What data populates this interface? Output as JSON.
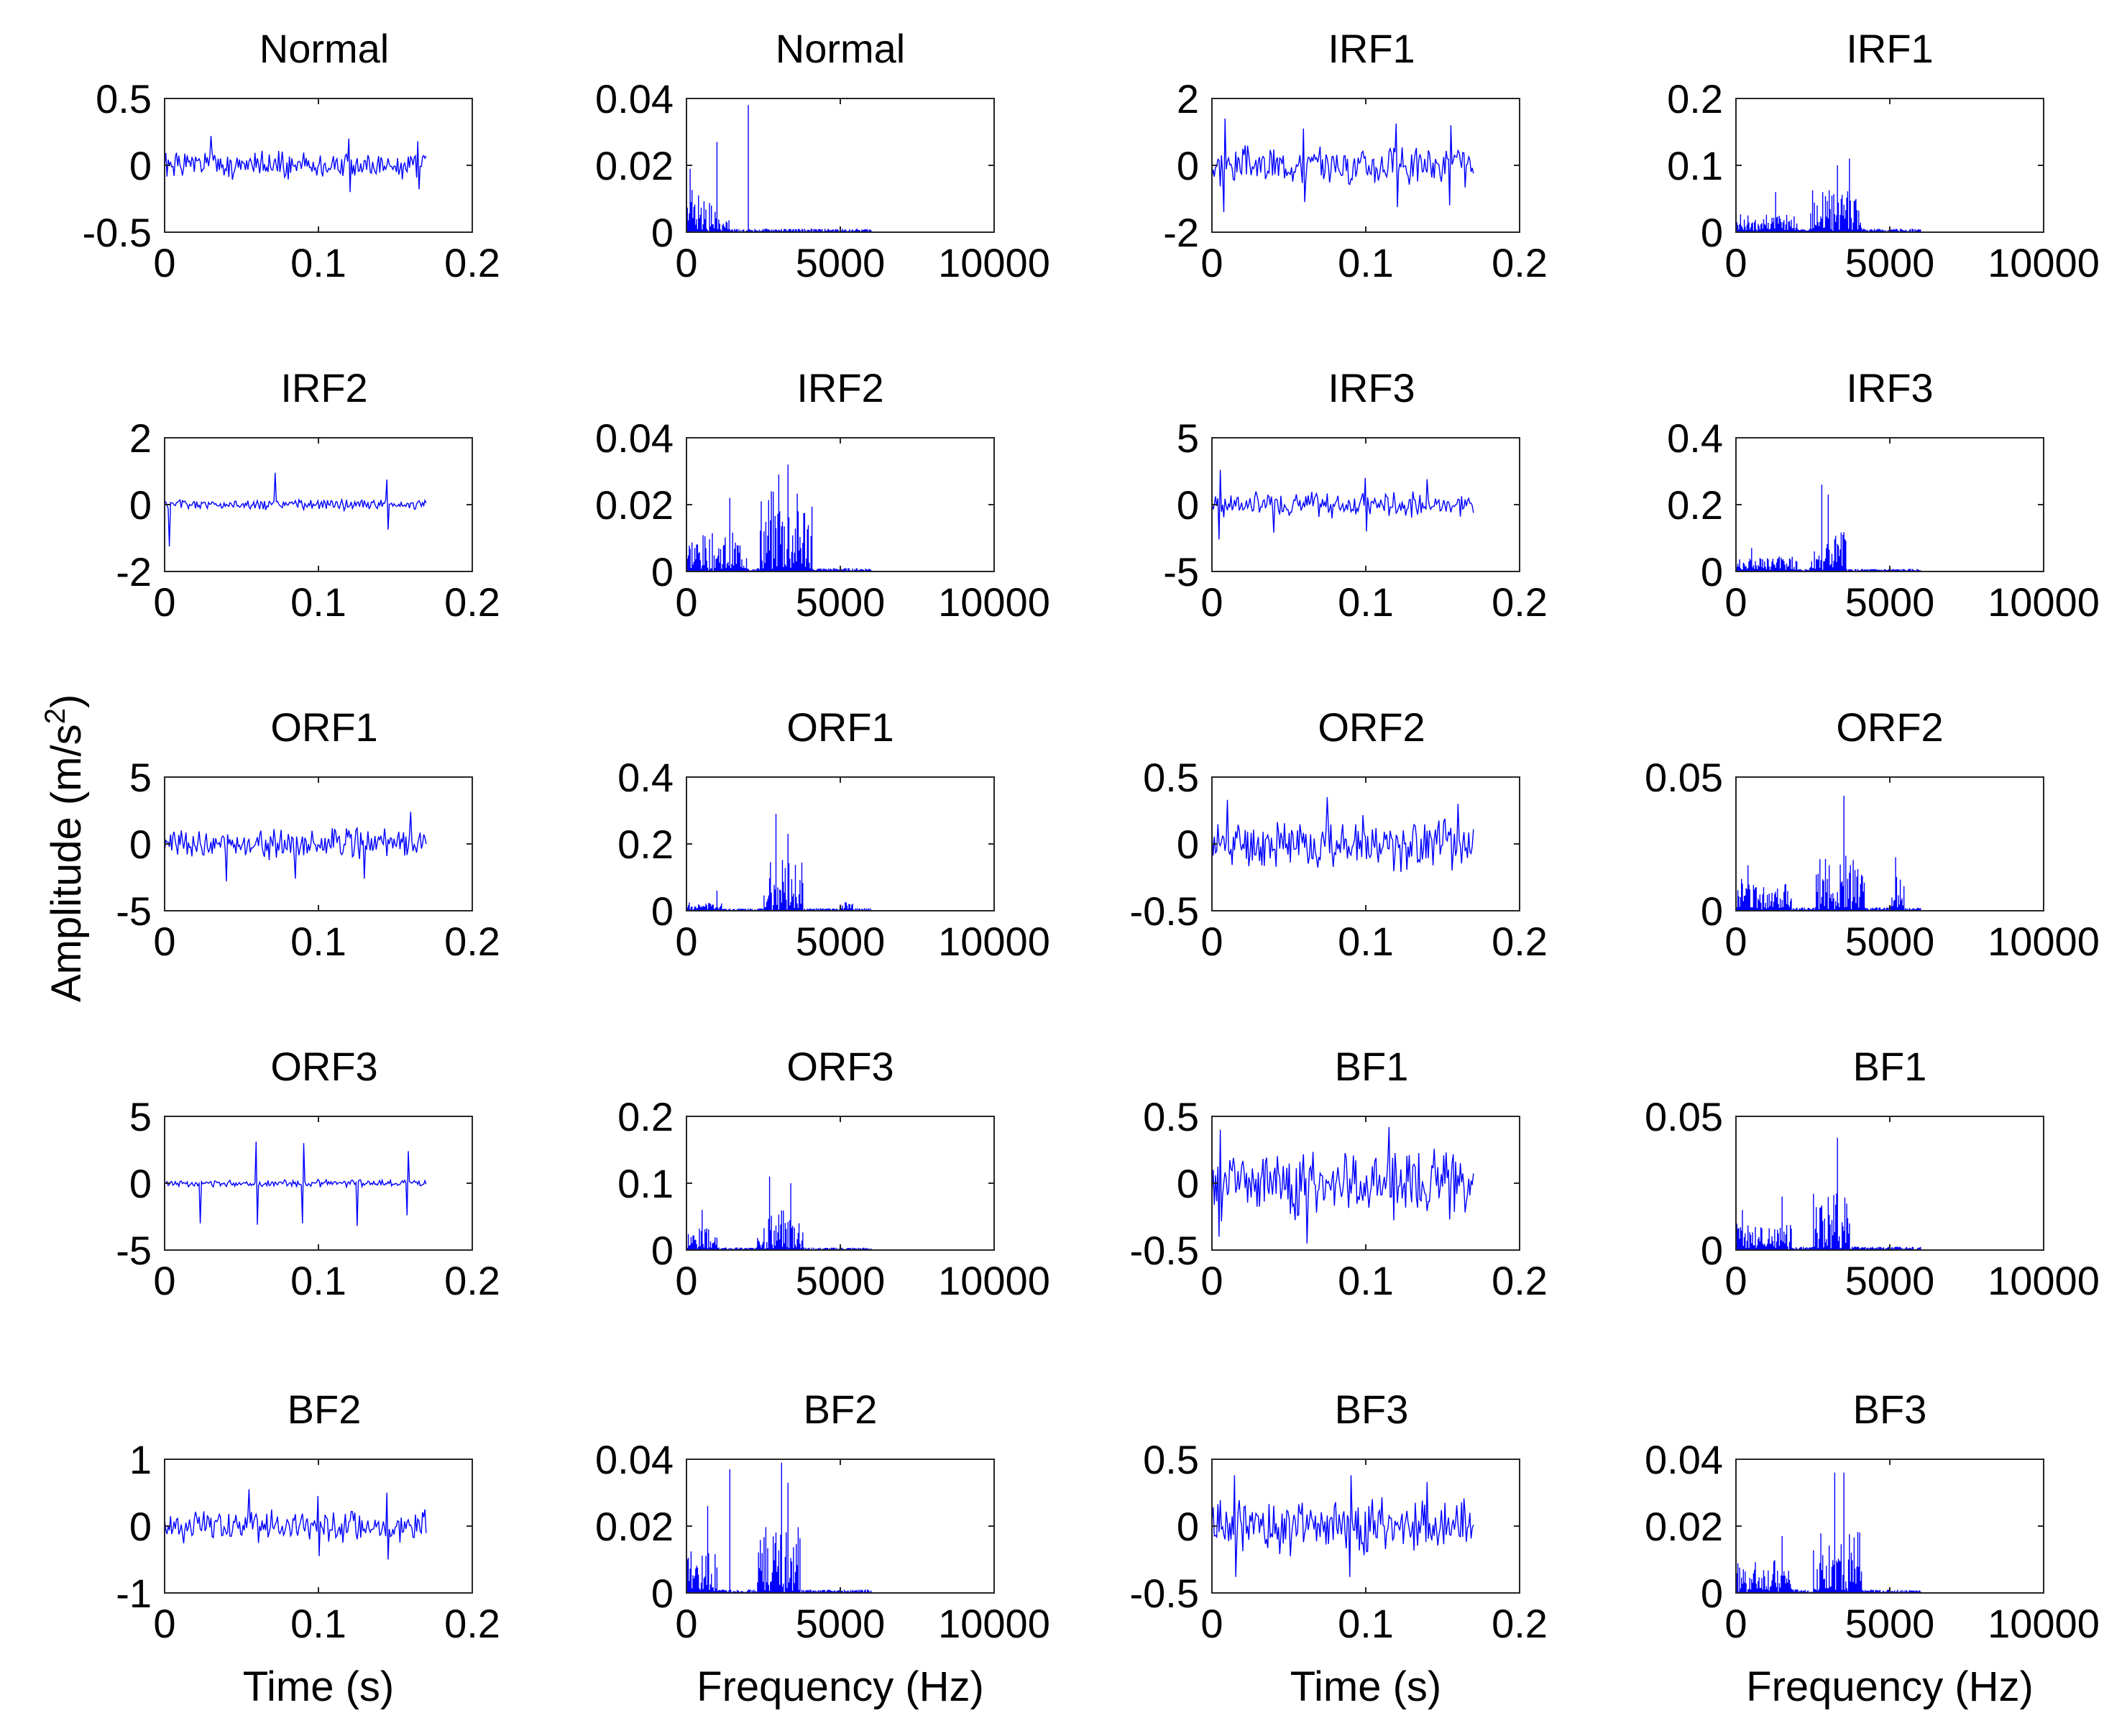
{
  "figure": {
    "ylabel": "Amplitude (m/s",
    "ylabel_sup": "2",
    "ylabel_close": ")",
    "xlabel_time": "Time (s)",
    "xlabel_freq": "Frequency (Hz)"
  },
  "chart_data": [
    {
      "type": "line",
      "domain": "time",
      "title": "Normal",
      "xlim": [
        0,
        0.2
      ],
      "ylim": [
        -0.5,
        0.5
      ],
      "xticks": [
        "0",
        "0.1",
        "0.2"
      ],
      "yticks": [
        "0.5",
        "0",
        "-0.5"
      ],
      "x_end": 0.17,
      "amp": 0.12,
      "spikes": [
        [
          0.03,
          0.22
        ],
        [
          0.12,
          0.2
        ],
        [
          0.165,
          0.18
        ]
      ],
      "seed": 1
    },
    {
      "type": "line",
      "domain": "frequency",
      "title": "Normal",
      "xlim": [
        0,
        10000
      ],
      "ylim": [
        0,
        0.04
      ],
      "xticks": [
        "0",
        "5000",
        "10000"
      ],
      "yticks": [
        "0.04",
        "0.02",
        "0"
      ],
      "x_end": 6000,
      "base": 0.0008,
      "bands": [
        [
          0,
          900,
          0.012
        ],
        [
          900,
          1400,
          0.006
        ]
      ],
      "spikes": [
        [
          120,
          0.019
        ],
        [
          1000,
          0.027
        ],
        [
          1800,
          0.0
        ],
        [
          2000,
          0.038
        ],
        [
          400,
          0.011
        ]
      ],
      "seed": 2
    },
    {
      "type": "line",
      "domain": "time",
      "title": "IRF1",
      "xlim": [
        0,
        0.2
      ],
      "ylim": [
        -2,
        2
      ],
      "xticks": [
        "0",
        "0.1",
        "0.2"
      ],
      "yticks": [
        "2",
        "0",
        "-2"
      ],
      "x_end": 0.17,
      "amp": 0.7,
      "spikes": [
        [
          0.008,
          1.4
        ],
        [
          0.06,
          1.1
        ],
        [
          0.12,
          1.25
        ],
        [
          0.155,
          1.2
        ]
      ],
      "seed": 3
    },
    {
      "type": "line",
      "domain": "frequency",
      "title": "IRF1",
      "xlim": [
        0,
        10000
      ],
      "ylim": [
        0,
        0.2
      ],
      "xticks": [
        "0",
        "5000",
        "10000"
      ],
      "yticks": [
        "0.2",
        "0.1",
        "0"
      ],
      "x_end": 6000,
      "base": 0.004,
      "bands": [
        [
          0,
          2000,
          0.025
        ],
        [
          2400,
          4100,
          0.06
        ]
      ],
      "spikes": [
        [
          1300,
          0.06
        ],
        [
          3300,
          0.1
        ],
        [
          3700,
          0.11
        ]
      ],
      "seed": 4
    },
    {
      "type": "line",
      "domain": "time",
      "title": "IRF2",
      "xlim": [
        0,
        0.2
      ],
      "ylim": [
        -2,
        2
      ],
      "xticks": [
        "0",
        "0.1",
        "0.2"
      ],
      "yticks": [
        "2",
        "0",
        "-2"
      ],
      "x_end": 0.17,
      "amp": 0.18,
      "spikes": [
        [
          0.003,
          1.25
        ],
        [
          0.072,
          0.95
        ],
        [
          0.145,
          0.75
        ]
      ],
      "seed": 5
    },
    {
      "type": "line",
      "domain": "frequency",
      "title": "IRF2",
      "xlim": [
        0,
        10000
      ],
      "ylim": [
        0,
        0.04
      ],
      "xticks": [
        "0",
        "5000",
        "10000"
      ],
      "yticks": [
        "0.04",
        "0.02",
        "0"
      ],
      "x_end": 6000,
      "base": 0.0008,
      "bands": [
        [
          0,
          2000,
          0.011
        ],
        [
          2400,
          4100,
          0.024
        ]
      ],
      "spikes": [
        [
          1400,
          0.022
        ],
        [
          3300,
          0.032
        ],
        [
          3000,
          0.029
        ]
      ],
      "seed": 6
    },
    {
      "type": "line",
      "domain": "time",
      "title": "IRF3",
      "xlim": [
        0,
        0.2
      ],
      "ylim": [
        -5,
        5
      ],
      "xticks": [
        "0",
        "0.1",
        "0.2"
      ],
      "yticks": [
        "5",
        "0",
        "-5"
      ],
      "x_end": 0.17,
      "amp": 1.1,
      "spikes": [
        [
          0.005,
          2.6
        ],
        [
          0.04,
          2.1
        ],
        [
          0.1,
          2.0
        ],
        [
          0.14,
          1.9
        ]
      ],
      "seed": 7
    },
    {
      "type": "line",
      "domain": "frequency",
      "title": "IRF3",
      "xlim": [
        0,
        10000
      ],
      "ylim": [
        0,
        0.4
      ],
      "xticks": [
        "0",
        "5000",
        "10000"
      ],
      "yticks": [
        "0.4",
        "0.2",
        "0"
      ],
      "x_end": 6000,
      "base": 0.006,
      "bands": [
        [
          0,
          2000,
          0.04
        ],
        [
          2400,
          3600,
          0.12
        ]
      ],
      "spikes": [
        [
          2800,
          0.26
        ],
        [
          3000,
          0.23
        ],
        [
          500,
          0.07
        ]
      ],
      "seed": 8
    },
    {
      "type": "line",
      "domain": "time",
      "title": "ORF1",
      "xlim": [
        0,
        0.2
      ],
      "ylim": [
        -5,
        5
      ],
      "xticks": [
        "0",
        "0.1",
        "0.2"
      ],
      "yticks": [
        "5",
        "0",
        "-5"
      ],
      "x_end": 0.17,
      "amp": 1.3,
      "spikes": [
        [
          0.04,
          2.8
        ],
        [
          0.085,
          2.6
        ],
        [
          0.13,
          2.6
        ],
        [
          0.16,
          2.4
        ]
      ],
      "seed": 9
    },
    {
      "type": "line",
      "domain": "frequency",
      "title": "ORF1",
      "xlim": [
        0,
        10000
      ],
      "ylim": [
        0,
        0.4
      ],
      "xticks": [
        "0",
        "5000",
        "10000"
      ],
      "yticks": [
        "0.4",
        "0.2",
        "0"
      ],
      "x_end": 6000,
      "base": 0.006,
      "bands": [
        [
          0,
          1200,
          0.02
        ],
        [
          2500,
          3800,
          0.15
        ],
        [
          5000,
          5400,
          0.02
        ]
      ],
      "spikes": [
        [
          2900,
          0.29
        ],
        [
          3300,
          0.23
        ],
        [
          1000,
          0.06
        ]
      ],
      "seed": 10
    },
    {
      "type": "line",
      "domain": "time",
      "title": "ORF2",
      "xlim": [
        0,
        0.2
      ],
      "ylim": [
        -0.5,
        0.5
      ],
      "xticks": [
        "0",
        "0.1",
        "0.2"
      ],
      "yticks": [
        "0.5",
        "0",
        "-0.5"
      ],
      "x_end": 0.17,
      "amp": 0.22,
      "spikes": [
        [
          0.01,
          0.33
        ],
        [
          0.075,
          0.35
        ],
        [
          0.16,
          0.3
        ]
      ],
      "seed": 11
    },
    {
      "type": "line",
      "domain": "frequency",
      "title": "ORF2",
      "xlim": [
        0,
        10000
      ],
      "ylim": [
        0,
        0.05
      ],
      "xticks": [
        "0",
        "5000",
        "10000"
      ],
      "yticks": [
        "0.05",
        "0"
      ],
      "x_end": 6000,
      "base": 0.001,
      "bands": [
        [
          0,
          1800,
          0.011
        ],
        [
          2600,
          4200,
          0.02
        ],
        [
          5000,
          5500,
          0.012
        ]
      ],
      "spikes": [
        [
          3500,
          0.043
        ],
        [
          5200,
          0.02
        ],
        [
          400,
          0.017
        ]
      ],
      "seed": 12
    },
    {
      "type": "line",
      "domain": "time",
      "title": "ORF3",
      "xlim": [
        0,
        0.2
      ],
      "ylim": [
        -5,
        5
      ],
      "xticks": [
        "0",
        "0.1",
        "0.2"
      ],
      "yticks": [
        "5",
        "0",
        "-5"
      ],
      "x_end": 0.17,
      "amp": 0.3,
      "spikes": [
        [
          0.023,
          3.0
        ],
        [
          0.06,
          3.1
        ],
        [
          0.09,
          3.0
        ],
        [
          0.125,
          3.2
        ],
        [
          0.158,
          2.4
        ]
      ],
      "seed": 13
    },
    {
      "type": "line",
      "domain": "frequency",
      "title": "ORF3",
      "xlim": [
        0,
        10000
      ],
      "ylim": [
        0,
        0.2
      ],
      "xticks": [
        "0",
        "5000",
        "10000"
      ],
      "yticks": [
        "0.2",
        "0.1",
        "0"
      ],
      "x_end": 6000,
      "base": 0.003,
      "bands": [
        [
          0,
          1000,
          0.03
        ],
        [
          2300,
          3800,
          0.06
        ]
      ],
      "spikes": [
        [
          2700,
          0.11
        ],
        [
          3400,
          0.1
        ],
        [
          500,
          0.06
        ]
      ],
      "seed": 14
    },
    {
      "type": "line",
      "domain": "time",
      "title": "BF1",
      "xlim": [
        0,
        0.2
      ],
      "ylim": [
        -0.5,
        0.5
      ],
      "xticks": [
        "0",
        "0.1",
        "0.2"
      ],
      "yticks": [
        "0.5",
        "0",
        "-0.5"
      ],
      "x_end": 0.17,
      "amp": 0.3,
      "spikes": [
        [
          0.062,
          0.45
        ],
        [
          0.115,
          0.42
        ],
        [
          0.005,
          0.4
        ]
      ],
      "seed": 15
    },
    {
      "type": "line",
      "domain": "frequency",
      "title": "BF1",
      "xlim": [
        0,
        10000
      ],
      "ylim": [
        0,
        0.05
      ],
      "xticks": [
        "0",
        "5000",
        "10000"
      ],
      "yticks": [
        "0.05",
        "0"
      ],
      "x_end": 6000,
      "base": 0.001,
      "bands": [
        [
          0,
          1800,
          0.01
        ],
        [
          2500,
          3700,
          0.022
        ]
      ],
      "spikes": [
        [
          3300,
          0.042
        ],
        [
          1500,
          0.02
        ],
        [
          200,
          0.015
        ]
      ],
      "seed": 16
    },
    {
      "type": "line",
      "domain": "time",
      "title": "BF2",
      "xlim": [
        0,
        0.2
      ],
      "ylim": [
        -1,
        1
      ],
      "xticks": [
        "0",
        "0.1",
        "0.2"
      ],
      "yticks": [
        "1",
        "0",
        "-1"
      ],
      "x_end": 0.17,
      "amp": 0.28,
      "spikes": [
        [
          0.055,
          0.55
        ],
        [
          0.1,
          0.45
        ],
        [
          0.145,
          0.5
        ]
      ],
      "seed": 17
    },
    {
      "type": "line",
      "domain": "frequency",
      "title": "BF2",
      "xlim": [
        0,
        10000
      ],
      "ylim": [
        0,
        0.04
      ],
      "xticks": [
        "0",
        "5000",
        "10000"
      ],
      "yticks": [
        "0.04",
        "0.02",
        "0"
      ],
      "x_end": 6000,
      "base": 0.0008,
      "bands": [
        [
          0,
          1000,
          0.012
        ],
        [
          2300,
          3700,
          0.02
        ]
      ],
      "spikes": [
        [
          700,
          0.026
        ],
        [
          1400,
          0.037
        ],
        [
          3100,
          0.039
        ],
        [
          3300,
          0.033
        ]
      ],
      "seed": 18
    },
    {
      "type": "line",
      "domain": "time",
      "title": "BF3",
      "xlim": [
        0,
        0.2
      ],
      "ylim": [
        -0.5,
        0.5
      ],
      "xticks": [
        "0",
        "0.1",
        "0.2"
      ],
      "yticks": [
        "0.5",
        "0",
        "-0.5"
      ],
      "x_end": 0.17,
      "amp": 0.25,
      "spikes": [
        [
          0.015,
          0.38
        ],
        [
          0.09,
          0.38
        ],
        [
          0.14,
          0.33
        ]
      ],
      "seed": 19
    },
    {
      "type": "line",
      "domain": "frequency",
      "title": "BF3",
      "xlim": [
        0,
        10000
      ],
      "ylim": [
        0,
        0.04
      ],
      "xticks": [
        "0",
        "5000",
        "10000"
      ],
      "yticks": [
        "0.04",
        "0.02",
        "0"
      ],
      "x_end": 6000,
      "base": 0.0008,
      "bands": [
        [
          0,
          1800,
          0.009
        ],
        [
          2500,
          4100,
          0.018
        ]
      ],
      "spikes": [
        [
          3200,
          0.036
        ],
        [
          3500,
          0.036
        ],
        [
          1500,
          0.017
        ]
      ],
      "seed": 20
    }
  ]
}
